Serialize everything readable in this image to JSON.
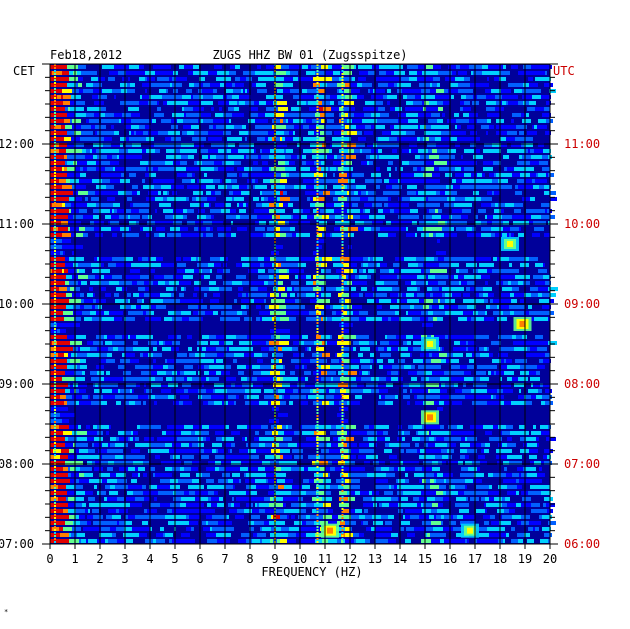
{
  "chart_data": {
    "type": "heatmap",
    "title": "ZUGS HHZ BW 01 (Zugsspitze)",
    "date": "Feb18,2012",
    "xlabel": "FREQUENCY (HZ)",
    "xlim": [
      0,
      20
    ],
    "x_ticks": [
      "0",
      "1",
      "2",
      "3",
      "4",
      "5",
      "6",
      "7",
      "8",
      "9",
      "10",
      "11",
      "12",
      "13",
      "14",
      "15",
      "16",
      "17",
      "18",
      "19",
      "20"
    ],
    "left_axis_label": "CET",
    "right_axis_label": "UTC",
    "left_ticks": [
      "12:00",
      "11:00",
      "10:00",
      "09:00",
      "08:00",
      "07:00"
    ],
    "right_ticks": [
      "11:00",
      "10:00",
      "09:00",
      "08:00",
      "07:00",
      "06:00"
    ],
    "time_range_cet": [
      "07:00",
      "13:00"
    ],
    "grid": true,
    "colormap": [
      "#00009a",
      "#0000ff",
      "#0060ff",
      "#00d0ff",
      "#60ff90",
      "#ffff00",
      "#ff8000",
      "#e00000"
    ],
    "strong_bands_hz": [
      0.2,
      9.0,
      10.7,
      11.7
    ],
    "events": [
      {
        "freq_hz": 15.2,
        "time": "08:35",
        "intensity": "high"
      },
      {
        "freq_hz": 15.2,
        "time": "09:30",
        "intensity": "medium"
      },
      {
        "freq_hz": 18.9,
        "time": "09:45",
        "intensity": "high"
      },
      {
        "freq_hz": 18.4,
        "time": "10:45",
        "intensity": "medium"
      },
      {
        "freq_hz": 16.8,
        "time": "07:10",
        "intensity": "medium"
      },
      {
        "freq_hz": 11.2,
        "time": "07:10",
        "intensity": "high"
      }
    ],
    "quiet_periods": [
      "08:40",
      "09:45",
      "10:45"
    ]
  },
  "colors": {
    "left_text": "#000000",
    "right_text": "#cc0000",
    "grid": "#000000"
  }
}
